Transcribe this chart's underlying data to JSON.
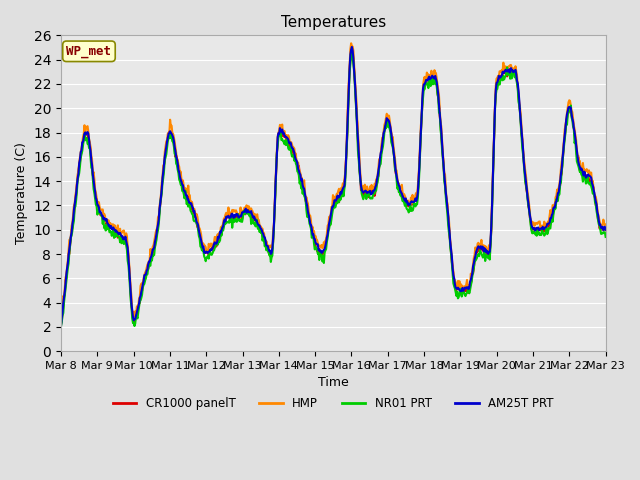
{
  "title": "Temperatures",
  "xlabel": "Time",
  "ylabel": "Temperature (C)",
  "background_color": "#e8e8e8",
  "plot_bg_color": "#e8e8e8",
  "ylim": [
    0,
    26
  ],
  "yticks": [
    0,
    2,
    4,
    6,
    8,
    10,
    12,
    14,
    16,
    18,
    20,
    22,
    24,
    26
  ],
  "x_labels": [
    "Mar 8",
    "Mar 9",
    "Mar 10",
    "Mar 11",
    "Mar 12",
    "Mar 13",
    "Mar 14",
    "Mar 15",
    "Mar 16",
    "Mar 17",
    "Mar 18",
    "Mar 19",
    "Mar 20",
    "Mar 21",
    "Mar 22",
    "Mar 23"
  ],
  "series": {
    "CR1000 panelT": {
      "color": "#dd0000",
      "lw": 1.5
    },
    "HMP": {
      "color": "#ff8800",
      "lw": 1.5
    },
    "NR01 PRT": {
      "color": "#00cc00",
      "lw": 1.5
    },
    "AM25T PRT": {
      "color": "#0000cc",
      "lw": 1.5
    }
  },
  "annotation_text": "WP_met",
  "annotation_color": "#880000",
  "annotation_bg": "#ffffcc",
  "annotation_border": "#888800"
}
